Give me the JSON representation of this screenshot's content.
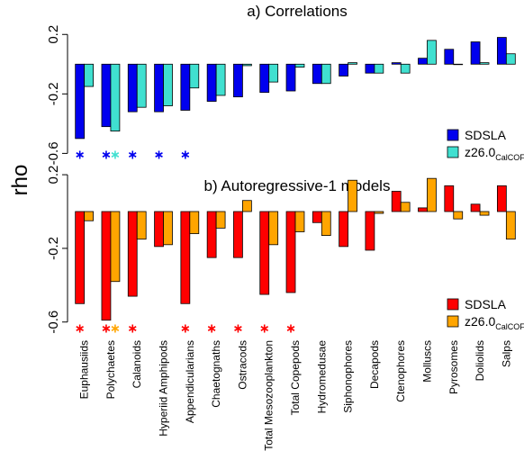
{
  "chart_data": [
    {
      "type": "bar",
      "title": "a) Correlations",
      "ylabel": "rho",
      "categories": [
        "Euphausiids",
        "Polychaetes",
        "Calanoids",
        "Hyperiid Amphipods",
        "Appendicularians",
        "Chaetognaths",
        "Ostracods",
        "Total Mesozooplankton",
        "Total Copepods",
        "Hydromedusae",
        "Siphonophores",
        "Decapods",
        "Ctenophores",
        "Molluscs",
        "Pyrosomes",
        "Doliolids",
        "Salps"
      ],
      "series": [
        {
          "name": "SDSLA",
          "color": "#0000ee",
          "values": [
            -0.5,
            -0.42,
            -0.32,
            -0.32,
            -0.31,
            -0.25,
            -0.22,
            -0.19,
            -0.18,
            -0.13,
            -0.08,
            -0.06,
            0.01,
            0.04,
            0.1,
            0.15,
            0.18
          ],
          "significant": [
            true,
            true,
            true,
            true,
            true,
            false,
            false,
            false,
            false,
            false,
            false,
            false,
            false,
            false,
            false,
            false,
            false
          ]
        },
        {
          "name": "z26.0",
          "name_sub": "CalCOFI",
          "color": "#40e0d0",
          "values": [
            -0.15,
            -0.45,
            -0.29,
            -0.28,
            -0.16,
            -0.21,
            -0.01,
            -0.12,
            -0.02,
            -0.13,
            0.01,
            -0.06,
            -0.06,
            0.16,
            0.0,
            0.01,
            0.07
          ],
          "significant": [
            false,
            true,
            false,
            false,
            false,
            false,
            false,
            false,
            false,
            false,
            false,
            false,
            false,
            false,
            false,
            false,
            false
          ]
        }
      ],
      "ylim": [
        -0.64,
        0.25
      ],
      "yticks": [
        0.2,
        -0.2,
        -0.6
      ]
    },
    {
      "type": "bar",
      "title": "b) Autoregressive-1 models",
      "categories": [
        "Euphausiids",
        "Polychaetes",
        "Calanoids",
        "Hyperiid Amphipods",
        "Appendicularians",
        "Chaetognaths",
        "Ostracods",
        "Total Mesozooplankton",
        "Total Copepods",
        "Hydromedusae",
        "Siphonophores",
        "Decapods",
        "Ctenophores",
        "Molluscs",
        "Pyrosomes",
        "Doliolids",
        "Salps"
      ],
      "series": [
        {
          "name": "SDSLA",
          "color": "#ff0000",
          "values": [
            -0.5,
            -0.59,
            -0.46,
            -0.19,
            -0.5,
            -0.25,
            -0.25,
            -0.45,
            -0.44,
            -0.06,
            -0.19,
            -0.21,
            0.11,
            0.02,
            0.14,
            0.04,
            0.14
          ],
          "significant": [
            true,
            true,
            true,
            false,
            true,
            true,
            true,
            true,
            true,
            false,
            false,
            false,
            false,
            false,
            false,
            false,
            false
          ]
        },
        {
          "name": "z26.0",
          "name_sub": "CalCOF",
          "color": "#ffa500",
          "values": [
            -0.05,
            -0.38,
            -0.15,
            -0.18,
            -0.12,
            -0.09,
            0.06,
            -0.18,
            -0.11,
            -0.13,
            0.17,
            -0.01,
            0.05,
            0.18,
            -0.04,
            -0.02,
            -0.15
          ],
          "significant": [
            false,
            true,
            false,
            false,
            false,
            false,
            false,
            false,
            false,
            false,
            false,
            false,
            false,
            false,
            false,
            false,
            false
          ]
        }
      ],
      "ylim": [
        -0.66,
        0.22
      ],
      "yticks": [
        0.2,
        -0.2,
        -0.6
      ]
    }
  ]
}
